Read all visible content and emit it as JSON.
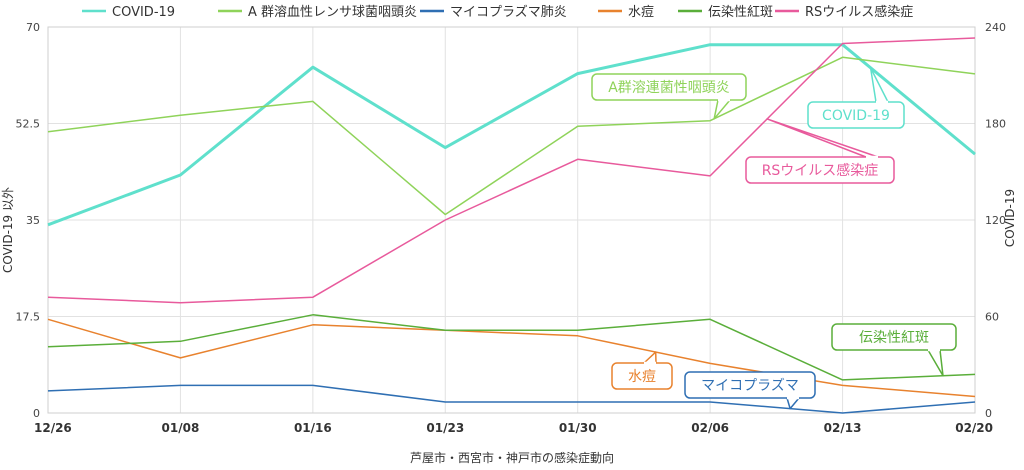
{
  "chart_data": {
    "type": "line",
    "title": "芦屋市・西宮市・神戸市の感染症動向",
    "xlabel": "芦屋市・西宮市・神戸市の感染症動向",
    "ylabel_left": "COVID-19 以外",
    "ylabel_right": "COVID-19",
    "ylim_left": [
      0,
      70
    ],
    "ylim_right": [
      0,
      240
    ],
    "yticks_left": [
      "0",
      "17.5",
      "35",
      "52.5",
      "70"
    ],
    "yticks_right": [
      "0",
      "60",
      "120",
      "180",
      "240"
    ],
    "categories": [
      "12/26",
      "01/08",
      "01/16",
      "01/23",
      "01/30",
      "02/06",
      "02/13",
      "02/20"
    ],
    "grid": true,
    "legend_position": "top",
    "series": [
      {
        "name": "COVID-19",
        "axis": "right",
        "color": "#5fe0cc",
        "width": 3,
        "values": [
          117,
          148,
          215,
          165,
          211,
          229,
          229,
          161
        ],
        "callout": "COVID-19"
      },
      {
        "name": "A 群溶血性レンサ球菌咽頭炎",
        "axis": "left",
        "color": "#8fd35a",
        "width": 1.5,
        "values": [
          51,
          54,
          56.5,
          36,
          52,
          53,
          64.5,
          61.5
        ],
        "callout": "A群溶連菌性咽頭炎"
      },
      {
        "name": "マイコプラズマ肺炎",
        "axis": "left",
        "color": "#2f6fb3",
        "width": 1.5,
        "values": [
          4,
          5,
          5,
          2,
          2,
          2,
          0,
          2
        ],
        "callout": "マイコプラズマ"
      },
      {
        "name": "水痘",
        "axis": "left",
        "color": "#e8822e",
        "width": 1.5,
        "values": [
          17,
          10,
          16,
          15,
          14,
          9,
          5,
          3
        ],
        "callout": "水痘"
      },
      {
        "name": "伝染性紅斑",
        "axis": "left",
        "color": "#5aae3a",
        "width": 1.5,
        "values": [
          12,
          13,
          17.8,
          15,
          15,
          17,
          6,
          7
        ],
        "callout": "伝染性紅斑"
      },
      {
        "name": "RSウイルス感染症",
        "axis": "left",
        "color": "#e85a9c",
        "width": 1.5,
        "values": [
          21,
          20,
          21,
          35,
          46,
          43,
          67,
          68
        ],
        "callout": "RSウイルス感染症"
      }
    ]
  }
}
